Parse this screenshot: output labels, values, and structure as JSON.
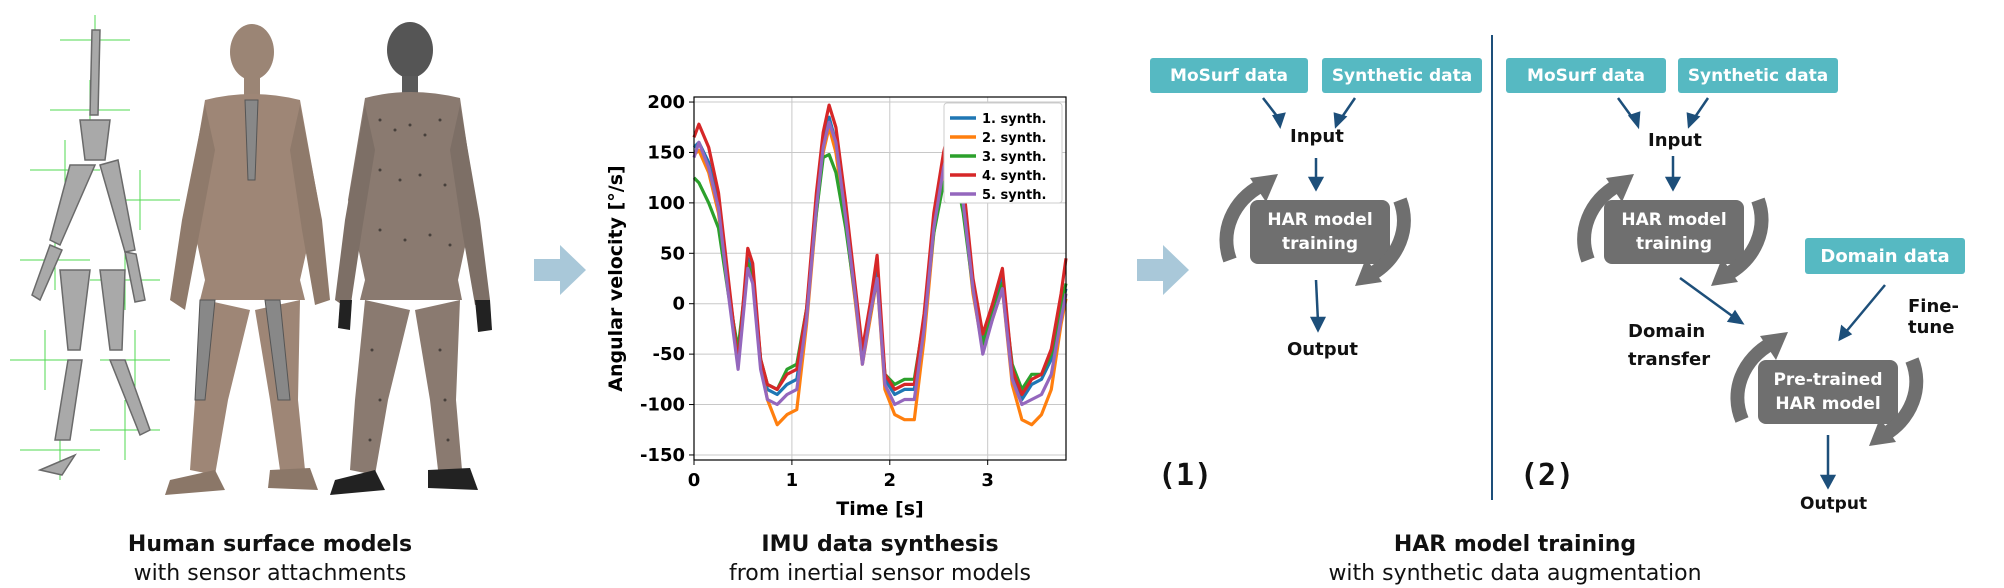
{
  "captions": {
    "models": {
      "title": "Human surface models",
      "sub": "with sensor attachments"
    },
    "imu": {
      "title": "IMU data synthesis",
      "sub": "from inertial sensor models"
    },
    "har": {
      "title": "HAR model training",
      "sub": "with synthetic data augmentation"
    }
  },
  "chart_data": {
    "type": "line",
    "xlabel": "Time [s]",
    "ylabel": "Angular velocity [°/s]",
    "xlim": [
      0,
      3.8
    ],
    "ylim": [
      -155,
      205
    ],
    "xticks": [
      0,
      1,
      2,
      3
    ],
    "yticks": [
      200,
      150,
      100,
      50,
      0,
      -50,
      -100,
      -150
    ],
    "grid": true,
    "legend_position": "top-right",
    "x": [
      0,
      0.05,
      0.15,
      0.25,
      0.35,
      0.45,
      0.55,
      0.6,
      0.68,
      0.75,
      0.85,
      0.95,
      1.05,
      1.15,
      1.25,
      1.32,
      1.38,
      1.45,
      1.55,
      1.65,
      1.72,
      1.8,
      1.87,
      1.95,
      2.05,
      2.15,
      2.25,
      2.35,
      2.45,
      2.55,
      2.62,
      2.68,
      2.75,
      2.85,
      2.95,
      3.05,
      3.15,
      3.25,
      3.35,
      3.45,
      3.55,
      3.65,
      3.75,
      3.8
    ],
    "series": [
      {
        "name": "1. synth.",
        "color": "#1f77b4",
        "values": [
          155,
          160,
          140,
          100,
          20,
          -55,
          45,
          30,
          -55,
          -85,
          -90,
          -80,
          -75,
          -10,
          100,
          160,
          185,
          160,
          90,
          10,
          -50,
          -5,
          35,
          -75,
          -90,
          -85,
          -85,
          -20,
          80,
          140,
          165,
          160,
          110,
          20,
          -35,
          -5,
          25,
          -70,
          -95,
          -80,
          -75,
          -55,
          -5,
          15
        ]
      },
      {
        "name": "2. synth.",
        "color": "#ff7f0e",
        "values": [
          148,
          152,
          130,
          90,
          15,
          -50,
          40,
          25,
          -60,
          -95,
          -120,
          -110,
          -105,
          -20,
          90,
          150,
          175,
          150,
          80,
          0,
          -60,
          -15,
          25,
          -85,
          -110,
          -115,
          -115,
          -35,
          70,
          130,
          155,
          150,
          100,
          10,
          -45,
          -15,
          15,
          -80,
          -115,
          -120,
          -110,
          -85,
          -20,
          5
        ]
      },
      {
        "name": "3. synth.",
        "color": "#2ca02c",
        "values": [
          125,
          120,
          100,
          75,
          10,
          -45,
          40,
          25,
          -55,
          -80,
          -85,
          -65,
          -60,
          -5,
          90,
          145,
          148,
          130,
          75,
          5,
          -55,
          -10,
          25,
          -70,
          -80,
          -75,
          -75,
          -15,
          70,
          120,
          128,
          125,
          90,
          15,
          -40,
          -10,
          20,
          -60,
          -85,
          -70,
          -70,
          -50,
          0,
          20
        ]
      },
      {
        "name": "4. synth.",
        "color": "#d62728",
        "values": [
          165,
          178,
          155,
          110,
          25,
          -60,
          55,
          40,
          -55,
          -80,
          -85,
          -70,
          -65,
          -5,
          110,
          170,
          197,
          175,
          100,
          15,
          -45,
          0,
          48,
          -70,
          -85,
          -80,
          -80,
          -10,
          90,
          150,
          180,
          175,
          120,
          25,
          -30,
          0,
          35,
          -65,
          -90,
          -75,
          -70,
          -45,
          10,
          45
        ]
      },
      {
        "name": "5. synth.",
        "color": "#9467bd",
        "values": [
          145,
          160,
          135,
          95,
          10,
          -65,
          35,
          20,
          -65,
          -95,
          -100,
          -90,
          -85,
          -15,
          95,
          155,
          180,
          160,
          85,
          5,
          -60,
          -10,
          25,
          -80,
          -100,
          -95,
          -95,
          -25,
          75,
          135,
          160,
          155,
          100,
          15,
          -50,
          -15,
          15,
          -75,
          -100,
          -95,
          -90,
          -70,
          -15,
          10
        ]
      }
    ]
  },
  "panel1": {
    "mosurf": "MoSurf data",
    "synthetic": "Synthetic data",
    "input": "Input",
    "har_training": "HAR model training",
    "output": "Output",
    "number": "(1)"
  },
  "panel2": {
    "mosurf": "MoSurf data",
    "synthetic": "Synthetic data",
    "input": "Input",
    "har_training": "HAR model training",
    "domain_data": "Domain data",
    "domain_transfer": "Domain transfer",
    "finetune": "Fine-tune",
    "pretrained": "Pre-trained HAR model",
    "output": "Output",
    "number": "(2)"
  },
  "colors": {
    "teal": "#56b9c2",
    "gray": "#6f6f6f",
    "arrow": "#1d4f7a",
    "light_arrow": "#a9c8d9"
  }
}
